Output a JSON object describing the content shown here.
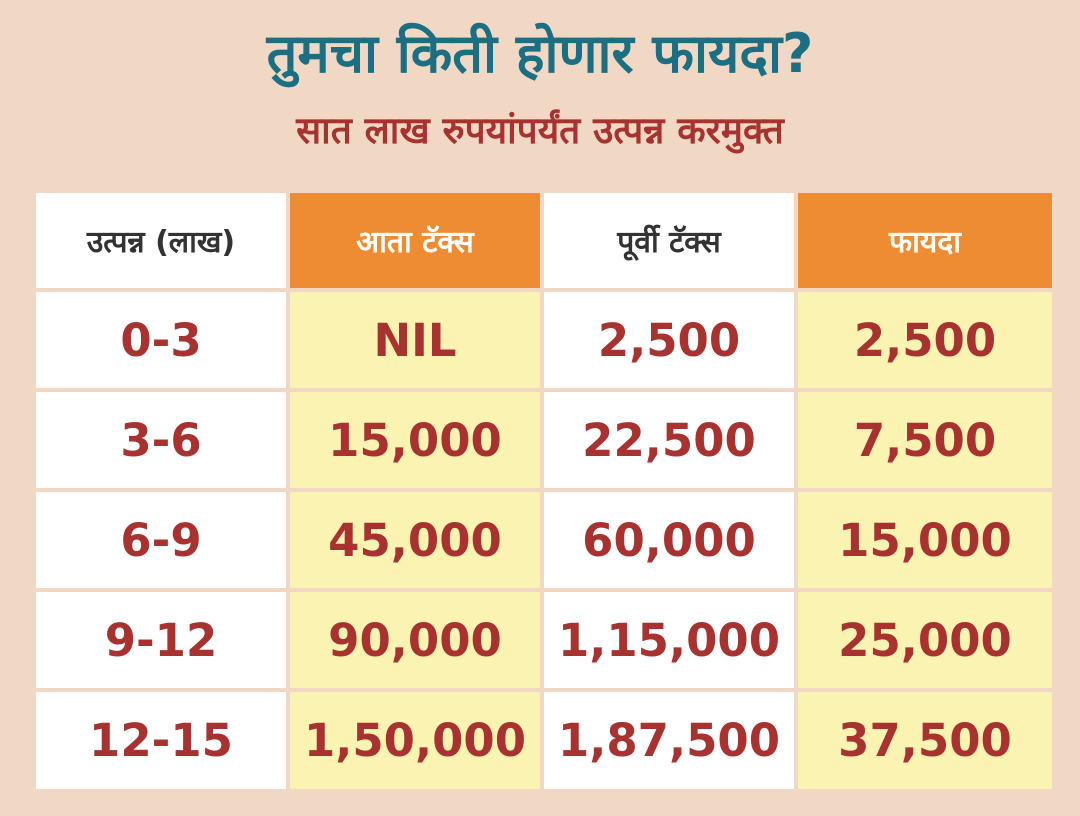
{
  "title": "तुमचा किती होणार फायदा?",
  "subtitle": "सात लाख रुपयांपर्यंत उत्पन्न करमुक्त",
  "table": {
    "headers": [
      "उत्पन्न (लाख)",
      "आता टॅक्स",
      "पूर्वी टॅक्स",
      "फायदा"
    ],
    "rows": [
      [
        "0-3",
        "NIL",
        "2,500",
        "2,500"
      ],
      [
        "3-6",
        "15,000",
        "22,500",
        "7,500"
      ],
      [
        "6-9",
        "45,000",
        "60,000",
        "15,000"
      ],
      [
        "9-12",
        "90,000",
        "1,15,000",
        "25,000"
      ],
      [
        "12-15",
        "1,50,000",
        "1,87,500",
        "37,500"
      ]
    ]
  },
  "colors": {
    "background": "#f0d8c4",
    "title": "#1c6f82",
    "subtitle_and_values": "#a83230",
    "header_orange": "#ee8c34",
    "cell_yellow": "#fbf3b1",
    "cell_white": "#ffffff"
  }
}
